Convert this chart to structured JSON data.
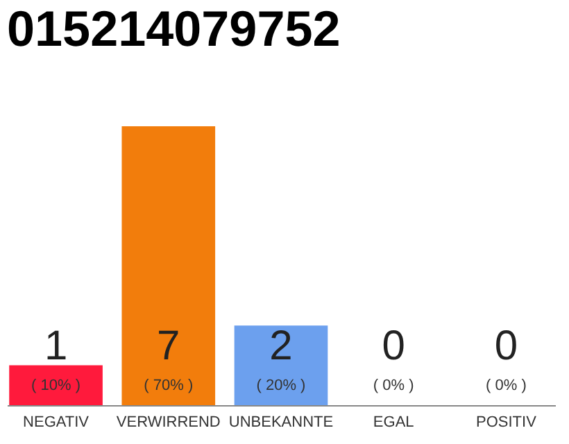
{
  "chart_data": {
    "type": "bar",
    "title": "015214079752",
    "categories": [
      "NEGATIV",
      "VERWIRREND",
      "UNBEKANNTE",
      "EGAL",
      "POSITIV"
    ],
    "values": [
      1,
      7,
      2,
      0,
      0
    ],
    "colors": [
      "#ff1a3c",
      "#f27d0c",
      "#6ca0ee",
      "#cccccc",
      "#cccccc"
    ],
    "data_labels": true,
    "annotations": [
      {
        "text": "( 10% )",
        "x": "NEGATIV",
        "y": 0
      },
      {
        "text": "( 70% )",
        "x": "VERWIRREND",
        "y": 0
      },
      {
        "text": "( 20% )",
        "x": "UNBEKANNTE",
        "y": 0
      },
      {
        "text": "( 0% )",
        "x": "EGAL",
        "y": 0
      },
      {
        "text": "( 0% )",
        "x": "POSITIV",
        "y": 0
      }
    ],
    "tick_labels": "x"
  }
}
